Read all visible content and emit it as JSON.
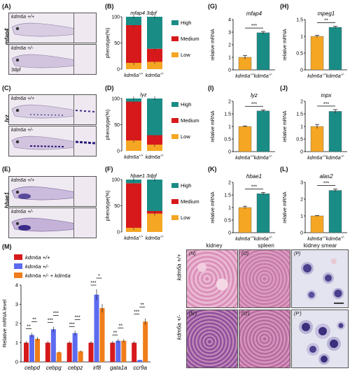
{
  "panels": {
    "A": "(A)",
    "B": "(B)",
    "C": "(C)",
    "D": "(D)",
    "E": "(E)",
    "F": "(F)",
    "G": "(G)",
    "H": "(H)",
    "I": "(I)",
    "J": "(J)",
    "K": "(K)",
    "L": "(L)",
    "M": "(M)",
    "N": "(N)",
    "O": "(O)",
    "P": "(P)",
    "N2": "(N')",
    "O2": "(O')",
    "P2": "(P')"
  },
  "fish_panels": [
    {
      "gene": "mfap4",
      "top_label": "kdm6a +/+",
      "bottom_label": "kdm6a +/-",
      "stage": "3dpf"
    },
    {
      "gene": "lyz",
      "top_label": "kdm6a +/+",
      "bottom_label": "kdm6a +/-",
      "stage": "3dpf"
    },
    {
      "gene": "hbae1",
      "top_label": "kdm6a +/+",
      "bottom_label": "kdm6a +/-",
      "stage": "3dpf"
    }
  ],
  "colors": {
    "orange": "#F5A623",
    "red": "#D7191C",
    "teal": "#1A8C86",
    "blue": "#5C6BF0",
    "orange2": "#F07D1A"
  },
  "chart_data": [
    {
      "panel": "B",
      "type": "bar",
      "stacked": true,
      "title": "mfap4  3dpf",
      "ylabel": "phenotype(%)",
      "ylim": [
        0,
        100
      ],
      "yticks": [
        0,
        50,
        100
      ],
      "categories": [
        "kdm6a +/+",
        "kdm6a +/-"
      ],
      "series": [
        {
          "name": "Low",
          "values": [
            12,
            14
          ]
        },
        {
          "name": "Medium",
          "values": [
            72,
            25
          ]
        },
        {
          "name": "High",
          "values": [
            16,
            61
          ]
        }
      ],
      "legend": [
        "High",
        "Medium",
        "Low"
      ]
    },
    {
      "panel": "D",
      "type": "bar",
      "stacked": true,
      "title": "lyz",
      "ylabel": "phenotype(%)",
      "ylim": [
        0,
        100
      ],
      "yticks": [
        0,
        50,
        100
      ],
      "categories": [
        "kdm6a +/+",
        "kdm6a +/-"
      ],
      "series": [
        {
          "name": "Low",
          "values": [
            20,
            12
          ]
        },
        {
          "name": "Medium",
          "values": [
            74,
            18
          ]
        },
        {
          "name": "High",
          "values": [
            6,
            70
          ]
        }
      ],
      "legend": [
        "High",
        "Medium",
        "Low"
      ]
    },
    {
      "panel": "F",
      "type": "bar",
      "stacked": true,
      "title": "hbae1  3dpf",
      "ylabel": "phenotype(%)",
      "ylim": [
        0,
        100
      ],
      "yticks": [
        0,
        50,
        100
      ],
      "categories": [
        "kdm6a +/+",
        "kdm6a +/-"
      ],
      "series": [
        {
          "name": "Low",
          "values": [
            8,
            35
          ]
        },
        {
          "name": "Medium",
          "values": [
            85,
            5
          ]
        },
        {
          "name": "High",
          "values": [
            7,
            60
          ]
        }
      ],
      "legend": [
        "High",
        "Medium",
        "Low"
      ]
    },
    {
      "panel": "G",
      "type": "bar",
      "title": "mfap4",
      "ylabel": "relative mRNA",
      "ylim": [
        0,
        4
      ],
      "yticks": [
        0,
        1,
        2,
        3,
        4
      ],
      "categories": [
        "kdm6a +/+",
        "kdm6a +/-"
      ],
      "values": [
        1.0,
        2.95
      ],
      "errors": [
        0.15,
        0.1
      ],
      "sig": "***"
    },
    {
      "panel": "H",
      "type": "bar",
      "title": "mpeg1",
      "ylabel": "relative mRNA",
      "ylim": [
        0,
        1.5
      ],
      "yticks": [
        0,
        0.5,
        1.0,
        1.5
      ],
      "categories": [
        "kdm6a +/+",
        "kdm6a +/-"
      ],
      "values": [
        1.0,
        1.27
      ],
      "errors": [
        0.03,
        0.03
      ],
      "sig": "**"
    },
    {
      "panel": "I",
      "type": "bar",
      "title": "lyz",
      "ylabel": "relative mRNA",
      "ylim": [
        0,
        2.0
      ],
      "yticks": [
        0,
        0.5,
        1.0,
        1.5,
        2.0
      ],
      "categories": [
        "kdm6a +/+",
        "kdm6a +/-"
      ],
      "values": [
        1.0,
        1.62
      ],
      "errors": [
        0.02,
        0.04
      ],
      "sig": "***"
    },
    {
      "panel": "J",
      "type": "bar",
      "title": "mpx",
      "ylabel": "relative mRNA",
      "ylim": [
        0,
        2.0
      ],
      "yticks": [
        0,
        0.5,
        1.0,
        1.5,
        2.0
      ],
      "categories": [
        "kdm6a +/+",
        "kdm6a +/-"
      ],
      "values": [
        1.0,
        1.6
      ],
      "errors": [
        0.08,
        0.07
      ],
      "sig": "***"
    },
    {
      "panel": "K",
      "type": "bar",
      "title": "hbae1",
      "ylabel": "relative mRNA",
      "ylim": [
        0,
        2.0
      ],
      "yticks": [
        0,
        0.5,
        1.0,
        1.5,
        2.0
      ],
      "categories": [
        "kdm6a +/+",
        "kdm6a +/-"
      ],
      "values": [
        1.0,
        1.55
      ],
      "errors": [
        0.05,
        0.05
      ],
      "sig": "***"
    },
    {
      "panel": "L",
      "type": "bar",
      "title": "alas2",
      "ylabel": "relative mRNA",
      "ylim": [
        0,
        3
      ],
      "yticks": [
        0,
        1,
        2,
        3
      ],
      "categories": [
        "kdm6a +/+",
        "kdm6a +/-"
      ],
      "values": [
        1.0,
        2.52
      ],
      "errors": [
        0.02,
        0.08
      ],
      "sig": "***"
    },
    {
      "panel": "M",
      "type": "bar",
      "ylabel": "Relative mRNA level",
      "ylim": [
        0,
        4
      ],
      "yticks": [
        0,
        1,
        2,
        3,
        4
      ],
      "categories": [
        "cebpd",
        "cebpg",
        "cebpz",
        "irf8",
        "gata1a",
        "ccr9a"
      ],
      "series": [
        {
          "name": "kdm6a +/+",
          "values": [
            1.0,
            1.0,
            1.0,
            1.0,
            1.0,
            1.0
          ]
        },
        {
          "name": "kdm6a +/-",
          "values": [
            1.4,
            1.7,
            1.5,
            3.5,
            1.1,
            0.1
          ]
        },
        {
          "name": "kdm6a +/- + kdm6a",
          "values": [
            1.2,
            0.5,
            0.55,
            2.8,
            1.1,
            2.1
          ]
        }
      ],
      "sig_left": [
        "**",
        "***",
        "***",
        "***",
        "**",
        "***"
      ],
      "sig_right": [
        "**",
        "***",
        "***",
        "*",
        "**",
        "**"
      ]
    }
  ],
  "histology": {
    "columns": [
      "kidney",
      "spleen",
      "kidney smear"
    ],
    "row_labels": [
      "kdm6a +/+",
      "kdm6a +/-"
    ]
  }
}
